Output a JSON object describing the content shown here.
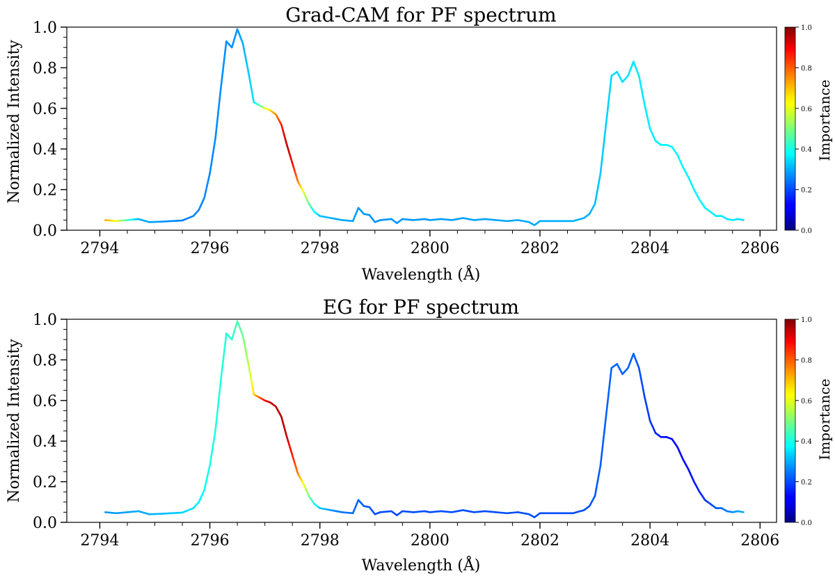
{
  "chart_data": [
    {
      "type": "line",
      "title": "Grad-CAM for PF spectrum",
      "xlabel": "Wavelength (Å)",
      "ylabel": "Normalized Intensity",
      "xlim": [
        2793.4,
        2806.3
      ],
      "ylim": [
        0.0,
        1.0
      ],
      "xticks": [
        2794,
        2796,
        2798,
        2800,
        2802,
        2804,
        2806
      ],
      "yticks": [
        "0.0",
        "0.2",
        "0.4",
        "0.6",
        "0.8",
        "1.0"
      ],
      "colorbar": {
        "label": "Importance",
        "ticks": [
          "0.0",
          "0.2",
          "0.4",
          "0.6",
          "0.8",
          "1.0"
        ],
        "colormap": "jet"
      },
      "intensity": {
        "x": [
          2794.1,
          2794.3,
          2794.5,
          2794.7,
          2794.9,
          2795.1,
          2795.3,
          2795.5,
          2795.7,
          2795.8,
          2795.9,
          2796.0,
          2796.1,
          2796.2,
          2796.3,
          2796.4,
          2796.5,
          2796.6,
          2796.7,
          2796.8,
          2796.9,
          2797.0,
          2797.1,
          2797.2,
          2797.3,
          2797.4,
          2797.5,
          2797.6,
          2797.7,
          2797.8,
          2797.9,
          2798.0,
          2798.2,
          2798.4,
          2798.6,
          2798.7,
          2798.8,
          2798.9,
          2799.0,
          2799.1,
          2799.3,
          2799.4,
          2799.5,
          2799.7,
          2799.9,
          2800.0,
          2800.2,
          2800.4,
          2800.6,
          2800.8,
          2801.0,
          2801.2,
          2801.4,
          2801.6,
          2801.8,
          2801.9,
          2802.0,
          2802.2,
          2802.4,
          2802.6,
          2802.8,
          2802.9,
          2803.0,
          2803.1,
          2803.2,
          2803.3,
          2803.4,
          2803.5,
          2803.6,
          2803.7,
          2803.8,
          2803.9,
          2804.0,
          2804.1,
          2804.2,
          2804.3,
          2804.4,
          2804.5,
          2804.6,
          2804.7,
          2804.8,
          2804.9,
          2805.0,
          2805.1,
          2805.2,
          2805.3,
          2805.4,
          2805.5,
          2805.6,
          2805.7
        ],
        "y": [
          0.05,
          0.045,
          0.05,
          0.055,
          0.04,
          0.042,
          0.045,
          0.048,
          0.07,
          0.1,
          0.16,
          0.28,
          0.45,
          0.7,
          0.93,
          0.9,
          0.99,
          0.92,
          0.78,
          0.63,
          0.615,
          0.6,
          0.59,
          0.57,
          0.52,
          0.42,
          0.33,
          0.24,
          0.19,
          0.13,
          0.09,
          0.07,
          0.06,
          0.05,
          0.045,
          0.11,
          0.08,
          0.075,
          0.04,
          0.05,
          0.055,
          0.035,
          0.055,
          0.05,
          0.055,
          0.05,
          0.055,
          0.05,
          0.06,
          0.05,
          0.055,
          0.05,
          0.045,
          0.05,
          0.04,
          0.025,
          0.045,
          0.045,
          0.045,
          0.045,
          0.06,
          0.08,
          0.13,
          0.28,
          0.52,
          0.76,
          0.78,
          0.73,
          0.76,
          0.83,
          0.76,
          0.62,
          0.5,
          0.44,
          0.42,
          0.42,
          0.41,
          0.37,
          0.31,
          0.26,
          0.2,
          0.15,
          0.11,
          0.09,
          0.07,
          0.07,
          0.055,
          0.05,
          0.055,
          0.05
        ]
      },
      "importance": {
        "x": [
          2794.1,
          2794.3,
          2794.5,
          2794.7,
          2795.5,
          2796.5,
          2796.8,
          2796.9,
          2797.0,
          2797.1,
          2797.2,
          2797.3,
          2797.4,
          2797.5,
          2797.6,
          2797.7,
          2797.8,
          2797.9,
          2798.0,
          2798.3,
          2799.0,
          2802.9,
          2803.2,
          2803.6,
          2804.5,
          2805.7
        ],
        "v": [
          0.72,
          0.62,
          0.45,
          0.3,
          0.25,
          0.27,
          0.35,
          0.45,
          0.58,
          0.66,
          0.74,
          0.85,
          0.95,
          0.88,
          0.76,
          0.6,
          0.48,
          0.38,
          0.32,
          0.29,
          0.27,
          0.3,
          0.33,
          0.35,
          0.37,
          0.35
        ]
      }
    },
    {
      "type": "line",
      "title": "EG for PF spectrum",
      "xlabel": "Wavelength (Å)",
      "ylabel": "Normalized Intensity",
      "xlim": [
        2793.4,
        2806.3
      ],
      "ylim": [
        0.0,
        1.0
      ],
      "xticks": [
        2794,
        2796,
        2798,
        2800,
        2802,
        2804,
        2806
      ],
      "yticks": [
        "0.0",
        "0.2",
        "0.4",
        "0.6",
        "0.8",
        "1.0"
      ],
      "colorbar": {
        "label": "Importance",
        "ticks": [
          "0.0",
          "0.2",
          "0.4",
          "0.6",
          "0.8",
          "1.0"
        ],
        "colormap": "jet"
      },
      "intensity": {
        "x": [
          2794.1,
          2794.3,
          2794.5,
          2794.7,
          2794.9,
          2795.1,
          2795.3,
          2795.5,
          2795.7,
          2795.8,
          2795.9,
          2796.0,
          2796.1,
          2796.2,
          2796.3,
          2796.4,
          2796.5,
          2796.6,
          2796.7,
          2796.8,
          2796.9,
          2797.0,
          2797.1,
          2797.2,
          2797.3,
          2797.4,
          2797.5,
          2797.6,
          2797.7,
          2797.8,
          2797.9,
          2798.0,
          2798.2,
          2798.4,
          2798.6,
          2798.7,
          2798.8,
          2798.9,
          2799.0,
          2799.1,
          2799.3,
          2799.4,
          2799.5,
          2799.7,
          2799.9,
          2800.0,
          2800.2,
          2800.4,
          2800.6,
          2800.8,
          2801.0,
          2801.2,
          2801.4,
          2801.6,
          2801.8,
          2801.9,
          2802.0,
          2802.2,
          2802.4,
          2802.6,
          2802.8,
          2802.9,
          2803.0,
          2803.1,
          2803.2,
          2803.3,
          2803.4,
          2803.5,
          2803.6,
          2803.7,
          2803.8,
          2803.9,
          2804.0,
          2804.1,
          2804.2,
          2804.3,
          2804.4,
          2804.5,
          2804.6,
          2804.7,
          2804.8,
          2804.9,
          2805.0,
          2805.1,
          2805.2,
          2805.3,
          2805.4,
          2805.5,
          2805.6,
          2805.7
        ],
        "y": [
          0.05,
          0.045,
          0.05,
          0.055,
          0.04,
          0.042,
          0.045,
          0.048,
          0.07,
          0.1,
          0.16,
          0.28,
          0.45,
          0.7,
          0.93,
          0.9,
          0.99,
          0.92,
          0.78,
          0.63,
          0.615,
          0.6,
          0.59,
          0.57,
          0.52,
          0.42,
          0.33,
          0.24,
          0.19,
          0.13,
          0.09,
          0.07,
          0.06,
          0.05,
          0.045,
          0.11,
          0.08,
          0.075,
          0.04,
          0.05,
          0.055,
          0.035,
          0.055,
          0.05,
          0.055,
          0.05,
          0.055,
          0.05,
          0.06,
          0.05,
          0.055,
          0.05,
          0.045,
          0.05,
          0.04,
          0.025,
          0.045,
          0.045,
          0.045,
          0.045,
          0.06,
          0.08,
          0.13,
          0.28,
          0.52,
          0.76,
          0.78,
          0.73,
          0.76,
          0.83,
          0.76,
          0.62,
          0.5,
          0.44,
          0.42,
          0.42,
          0.41,
          0.37,
          0.31,
          0.26,
          0.2,
          0.15,
          0.11,
          0.09,
          0.07,
          0.07,
          0.055,
          0.05,
          0.055,
          0.05
        ]
      },
      "importance": {
        "x": [
          2794.1,
          2795.0,
          2795.5,
          2795.8,
          2796.0,
          2796.4,
          2796.6,
          2796.75,
          2796.9,
          2797.0,
          2797.1,
          2797.3,
          2797.4,
          2797.5,
          2797.6,
          2797.7,
          2797.8,
          2797.9,
          2798.0,
          2798.3,
          2799.0,
          2800.0,
          2802.8,
          2803.2,
          2803.7,
          2804.3,
          2804.6,
          2805.0,
          2805.7
        ],
        "v": [
          0.27,
          0.3,
          0.33,
          0.36,
          0.4,
          0.42,
          0.48,
          0.6,
          0.78,
          0.86,
          0.93,
          0.95,
          0.93,
          0.85,
          0.76,
          0.62,
          0.5,
          0.4,
          0.33,
          0.25,
          0.2,
          0.2,
          0.2,
          0.22,
          0.22,
          0.13,
          0.12,
          0.17,
          0.3
        ]
      }
    }
  ]
}
